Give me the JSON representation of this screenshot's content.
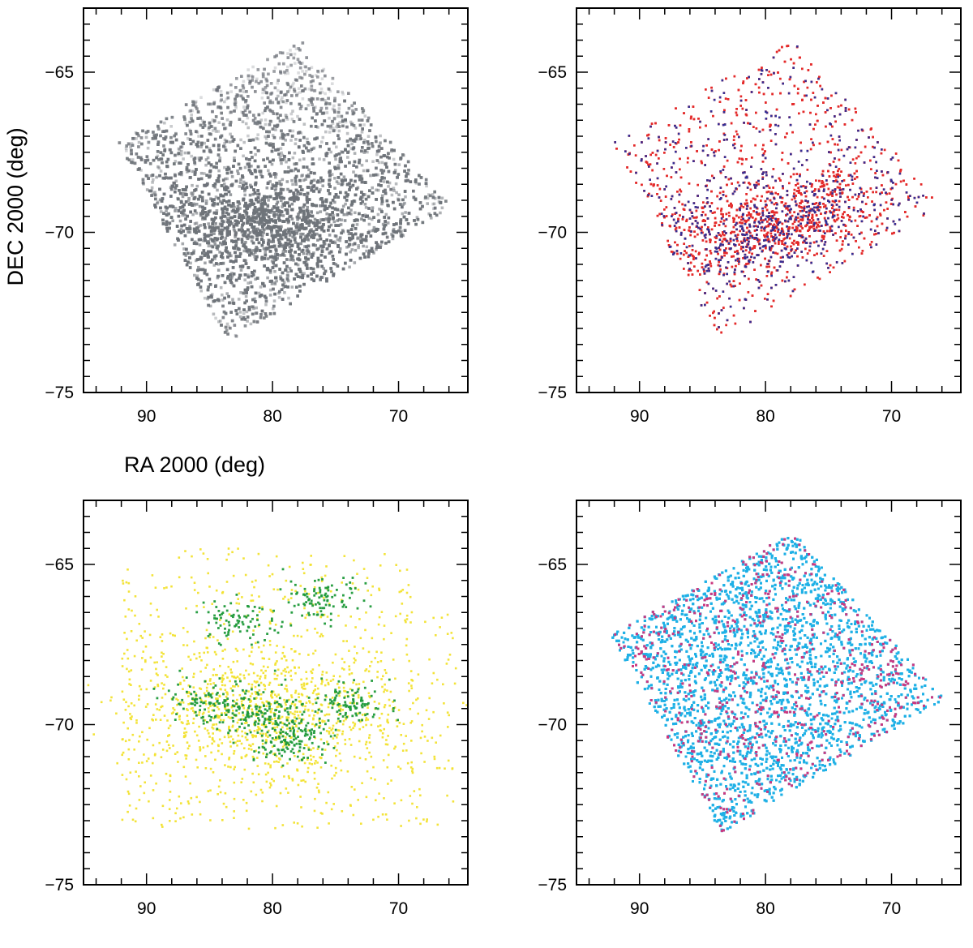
{
  "chart_data": [
    {
      "type": "scatter",
      "panel": "top-left",
      "style": "grayscale density map",
      "xlabel": "RA 2000 (deg)",
      "ylabel": "DEC 2000 (deg)",
      "xlim": [
        95,
        64.5
      ],
      "ylim": [
        -75,
        -63
      ],
      "x_ticks": [
        90,
        80,
        70
      ],
      "y_ticks": [
        -65,
        -70,
        -75
      ],
      "x_tick_labels": [
        "90",
        "80",
        "70"
      ],
      "y_tick_labels": [
        "−65",
        "−70",
        "−75"
      ],
      "field_corners": [
        [
          92.3,
          -67.2
        ],
        [
          77.8,
          -64.0
        ],
        [
          65.8,
          -69.2
        ],
        [
          83.5,
          -73.4
        ]
      ],
      "density_peak": [
        80.0,
        -69.8
      ],
      "series": [
        {
          "color": "#6f747a",
          "role": "density",
          "count_estimate": 9000
        }
      ]
    },
    {
      "type": "scatter",
      "panel": "top-right",
      "xlim": [
        95,
        64.5
      ],
      "ylim": [
        -75,
        -63
      ],
      "x_ticks": [
        90,
        80,
        70
      ],
      "y_ticks": [
        -65,
        -70,
        -75
      ],
      "x_tick_labels": [
        "90",
        "80",
        "70"
      ],
      "y_tick_labels": [
        "−65",
        "−70",
        "−75"
      ],
      "field_corners": [
        [
          92.3,
          -67.2
        ],
        [
          77.8,
          -64.0
        ],
        [
          65.8,
          -69.2
        ],
        [
          83.5,
          -73.4
        ]
      ],
      "concentration": {
        "center": [
          80.0,
          -69.8
        ],
        "spread": [
          4.5,
          1.4
        ]
      },
      "series": [
        {
          "color": "#e42a2a",
          "count_estimate": 5200
        },
        {
          "color": "#2a2f9a",
          "count_estimate": 700
        }
      ]
    },
    {
      "type": "scatter",
      "panel": "bottom-left",
      "xlim": [
        95,
        64.5
      ],
      "ylim": [
        -75,
        -63
      ],
      "x_ticks": [
        90,
        80,
        70
      ],
      "y_ticks": [
        -65,
        -70,
        -75
      ],
      "x_tick_labels": [
        "90",
        "80",
        "70"
      ],
      "y_tick_labels": [
        "−65",
        "−70",
        "−75"
      ],
      "clumps": [
        [
          82.0,
          -69.5
        ],
        [
          76.0,
          -66.1
        ],
        [
          82.5,
          -66.8
        ],
        [
          74.0,
          -69.4
        ],
        [
          85.5,
          -69.3
        ],
        [
          79.0,
          -69.8
        ],
        [
          78.5,
          -70.6
        ]
      ],
      "series": [
        {
          "color": "#f2e22e",
          "count_estimate": 1500
        },
        {
          "color": "#1f9a3a",
          "count_estimate": 650
        }
      ]
    },
    {
      "type": "scatter",
      "panel": "bottom-right",
      "xlim": [
        95,
        64.5
      ],
      "ylim": [
        -75,
        -63
      ],
      "x_ticks": [
        90,
        80,
        70
      ],
      "y_ticks": [
        -65,
        -70,
        -75
      ],
      "x_tick_labels": [
        "90",
        "80",
        "70"
      ],
      "y_tick_labels": [
        "−65",
        "−70",
        "−75"
      ],
      "field_corners": [
        [
          92.3,
          -67.2
        ],
        [
          77.8,
          -64.0
        ],
        [
          65.8,
          -69.2
        ],
        [
          83.5,
          -73.4
        ]
      ],
      "series": [
        {
          "color": "#1fb0e6",
          "count_estimate": 7500
        },
        {
          "color": "#d6337a",
          "count_estimate": 650
        }
      ]
    }
  ]
}
